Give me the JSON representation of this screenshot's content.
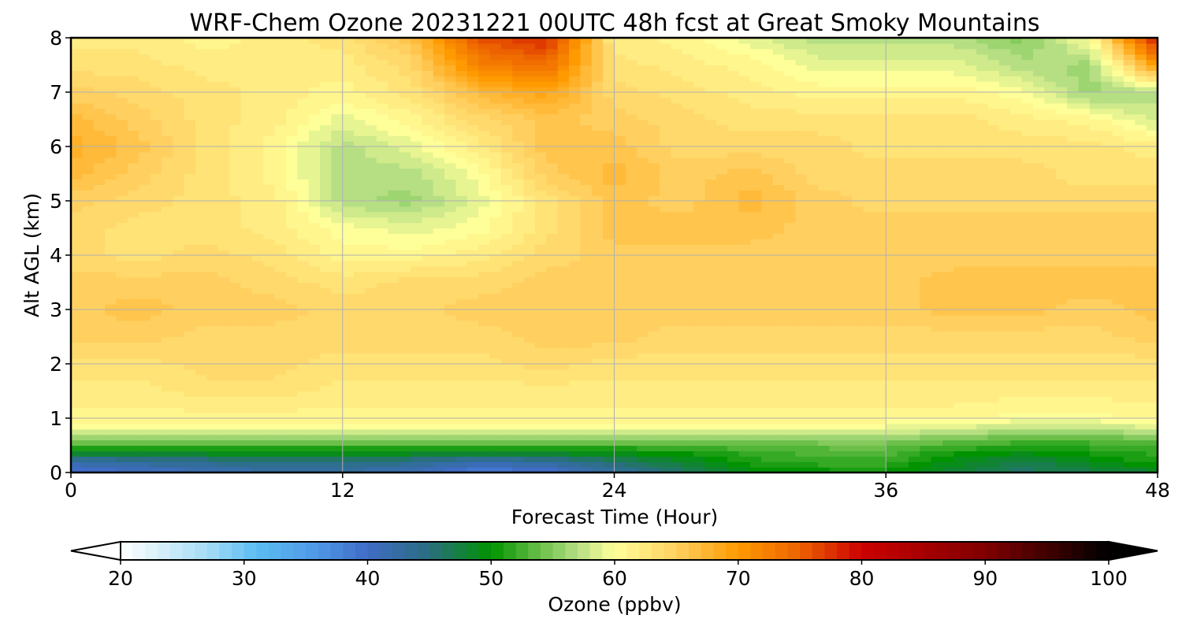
{
  "chart_data": {
    "type": "heatmap",
    "title": "WRF-Chem Ozone  20231221 00UTC 48h fcst at Great Smoky Mountains",
    "xlabel": "Forecast Time (Hour)",
    "ylabel": "Alt AGL (km)",
    "xlim": [
      0,
      48
    ],
    "ylim": [
      0,
      8
    ],
    "xticks": [
      "0",
      "12",
      "24",
      "36",
      "48"
    ],
    "yticks": [
      "0",
      "1",
      "2",
      "3",
      "4",
      "5",
      "6",
      "7",
      "8"
    ],
    "grid": true,
    "colorbar": {
      "label": "Ozone  (ppbv)",
      "range": [
        20,
        100
      ],
      "ticks": [
        "20",
        "30",
        "40",
        "50",
        "60",
        "70",
        "80",
        "90",
        "100"
      ],
      "extend": "both",
      "stops": [
        {
          "v": 20,
          "color": "#ffffff"
        },
        {
          "v": 27,
          "color": "#a6dcf5"
        },
        {
          "v": 31,
          "color": "#5bbdf2"
        },
        {
          "v": 36,
          "color": "#4f97e6"
        },
        {
          "v": 40,
          "color": "#3f6cc6"
        },
        {
          "v": 45,
          "color": "#2a6e80"
        },
        {
          "v": 50,
          "color": "#009300"
        },
        {
          "v": 54,
          "color": "#6cc04a"
        },
        {
          "v": 57,
          "color": "#b6df84"
        },
        {
          "v": 60,
          "color": "#ffff99"
        },
        {
          "v": 65,
          "color": "#ffd060"
        },
        {
          "v": 70,
          "color": "#ff9a00"
        },
        {
          "v": 75,
          "color": "#ec6200"
        },
        {
          "v": 80,
          "color": "#cc0000"
        },
        {
          "v": 90,
          "color": "#800000"
        },
        {
          "v": 100,
          "color": "#000000"
        }
      ]
    },
    "times": [
      0,
      3,
      6,
      9,
      12,
      15,
      18,
      21,
      24,
      27,
      30,
      33,
      36,
      39,
      42,
      45,
      48
    ],
    "altitudes": [
      0,
      0.2,
      0.4,
      0.6,
      0.8,
      1,
      1.5,
      2,
      2.5,
      3,
      3.5,
      4,
      4.5,
      5,
      5.5,
      6,
      6.5,
      7,
      7.5,
      8
    ],
    "values": [
      [
        39,
        40,
        41,
        42,
        42,
        41,
        38,
        39,
        43,
        46,
        49,
        50,
        50,
        48,
        46,
        47,
        48
      ],
      [
        42,
        43,
        44,
        45,
        45,
        44,
        42,
        43,
        46,
        48,
        51,
        52,
        52,
        49,
        47,
        49,
        51
      ],
      [
        50,
        50,
        50,
        50,
        50,
        50,
        50,
        50,
        50,
        51,
        52,
        53,
        53,
        51,
        50,
        51,
        52
      ],
      [
        55,
        55,
        55,
        55,
        55,
        55,
        55,
        55,
        55,
        55,
        55,
        55,
        55,
        54,
        53,
        53,
        54
      ],
      [
        59,
        59,
        59,
        59,
        59,
        59,
        59,
        59,
        59,
        59,
        59,
        59,
        59,
        58,
        57,
        57,
        58
      ],
      [
        61,
        61,
        61,
        61,
        61,
        61,
        61,
        61,
        61,
        61,
        61,
        61,
        61,
        61,
        60,
        60,
        61
      ],
      [
        62,
        62,
        63,
        63,
        62,
        62,
        62,
        62,
        62,
        62,
        62,
        62,
        62,
        62,
        62,
        62,
        62
      ],
      [
        63,
        63,
        64,
        64,
        63,
        63,
        63,
        64,
        63,
        63,
        63,
        63,
        63,
        63,
        63,
        63,
        63
      ],
      [
        65,
        65,
        64,
        64,
        64,
        64,
        64,
        65,
        65,
        64,
        64,
        64,
        64,
        64,
        64,
        64,
        65
      ],
      [
        65,
        66,
        65,
        65,
        64,
        64,
        65,
        65,
        65,
        65,
        65,
        65,
        65,
        66,
        66,
        65,
        66
      ],
      [
        65,
        65,
        65,
        64,
        63,
        64,
        64,
        65,
        65,
        65,
        65,
        65,
        65,
        66,
        66,
        66,
        66
      ],
      [
        64,
        63,
        64,
        63,
        61,
        61,
        62,
        64,
        65,
        65,
        65,
        65,
        65,
        65,
        65,
        65,
        65
      ],
      [
        64,
        63,
        63,
        62,
        60,
        59,
        60,
        63,
        66,
        66,
        66,
        65,
        65,
        65,
        65,
        65,
        65
      ],
      [
        65,
        64,
        63,
        62,
        57,
        56,
        59,
        63,
        66,
        65,
        67,
        65,
        64,
        64,
        64,
        64,
        64
      ],
      [
        67,
        65,
        63,
        61,
        57,
        57,
        60,
        65,
        67,
        65,
        66,
        64,
        64,
        64,
        64,
        63,
        63
      ],
      [
        68,
        66,
        63,
        61,
        57,
        59,
        62,
        66,
        66,
        64,
        64,
        64,
        63,
        63,
        63,
        63,
        62
      ],
      [
        67,
        65,
        63,
        62,
        59,
        61,
        64,
        66,
        65,
        64,
        63,
        63,
        63,
        63,
        62,
        61,
        58
      ],
      [
        65,
        64,
        63,
        62,
        61,
        63,
        67,
        69,
        64,
        63,
        62,
        61,
        61,
        61,
        60,
        56,
        57
      ],
      [
        63,
        63,
        62,
        62,
        62,
        64,
        72,
        74,
        63,
        62,
        61,
        59,
        59,
        59,
        57,
        56,
        70
      ],
      [
        62,
        62,
        61,
        62,
        63,
        66,
        76,
        78,
        62,
        61,
        59,
        57,
        57,
        57,
        55,
        60,
        80
      ]
    ]
  }
}
